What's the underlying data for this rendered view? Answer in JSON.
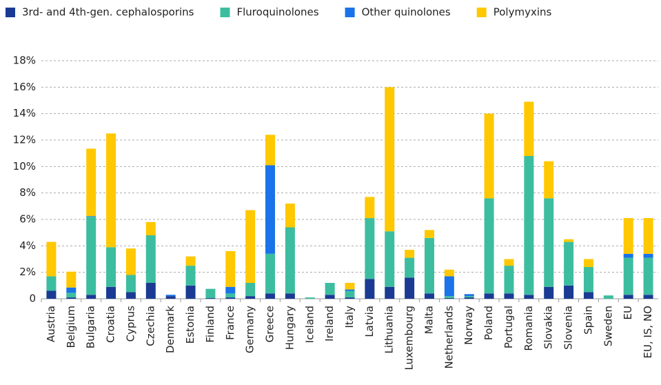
{
  "chart_data": {
    "type": "stacked_bar",
    "categories": [
      "Austria",
      "Belgium",
      "Bulgaria",
      "Croatia",
      "Cyprus",
      "Czechia",
      "Denmark",
      "Estonia",
      "Finland",
      "France",
      "Germany",
      "Greece",
      "Hungary",
      "Iceland",
      "Ireland",
      "Italy",
      "Latvia",
      "Lithuania",
      "Luxembourg",
      "Malta",
      "Netherlands",
      "Norway",
      "Poland",
      "Portugal",
      "Romania",
      "Slovakia",
      "Slovenia",
      "Spain",
      "Sweden",
      "EU",
      "EU, IS, NO"
    ],
    "series": [
      {
        "name": "3rd- and 4th-gen. cephalosporins",
        "color": "#1a3a93",
        "values": [
          0.6,
          0.1,
          0.3,
          0.9,
          0.5,
          1.2,
          0.2,
          1.0,
          0.05,
          0.1,
          0.2,
          0.4,
          0.4,
          0,
          0.3,
          0.1,
          1.5,
          0.9,
          1.6,
          0.4,
          0.05,
          0.1,
          0.4,
          0.4,
          0.3,
          0.9,
          1.0,
          0.5,
          0,
          0.3,
          0.3
        ]
      },
      {
        "name": "Fluroquinolones",
        "color": "#3dbda0",
        "values": [
          1.1,
          0.35,
          5.9,
          3.0,
          1.3,
          3.6,
          0,
          1.5,
          0.7,
          0.3,
          1.0,
          3.0,
          5.0,
          0.1,
          0.9,
          0.5,
          4.6,
          4.2,
          1.5,
          4.2,
          0.15,
          0.1,
          7.2,
          2.1,
          10.5,
          6.7,
          3.3,
          1.9,
          0.25,
          2.8,
          2.8
        ]
      },
      {
        "name": "Other quinolones",
        "color": "#1a73e8",
        "values": [
          0,
          0.4,
          0.05,
          0,
          0,
          0,
          0.1,
          0,
          0,
          0.5,
          0,
          6.7,
          0,
          0,
          0,
          0.1,
          0,
          0,
          0,
          0,
          1.5,
          0.15,
          0,
          0,
          0,
          0,
          0,
          0,
          0,
          0.3,
          0.3
        ]
      },
      {
        "name": "Polymyxins",
        "color": "#ffc800",
        "values": [
          2.6,
          1.2,
          5.1,
          8.6,
          2.0,
          1.0,
          0,
          0.7,
          0,
          2.7,
          5.5,
          2.3,
          1.8,
          0,
          0,
          0.5,
          1.6,
          10.9,
          0.6,
          0.6,
          0.5,
          0,
          6.4,
          0.5,
          4.1,
          2.8,
          0.2,
          0.6,
          0,
          2.7,
          2.7
        ]
      }
    ],
    "ylim": [
      0,
      18
    ],
    "yticks": [
      0,
      {
        "value": 2,
        "label": "2%"
      },
      {
        "value": 4,
        "label": "4%"
      },
      {
        "value": 6,
        "label": "6%"
      },
      {
        "value": 8,
        "label": "8%"
      },
      {
        "value": 10,
        "label": "10%"
      },
      {
        "value": 12,
        "label": "12%"
      },
      {
        "value": 14,
        "label": "14%"
      },
      {
        "value": 16,
        "label": "16%"
      },
      {
        "value": 18,
        "label": "18%"
      }
    ],
    "grid": true,
    "legend": "top"
  }
}
